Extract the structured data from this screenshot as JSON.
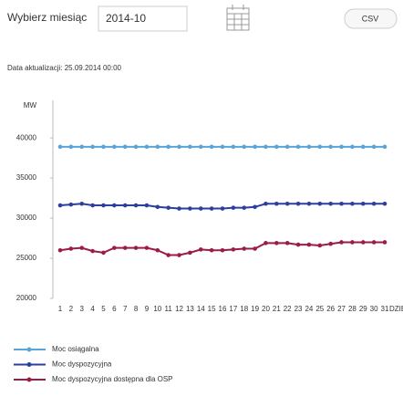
{
  "ui": {
    "month_label": "Wybierz miesiąc",
    "month_value": "2014-10",
    "csv_button": "CSV",
    "update_info": "Data aktualizacji: 25.09.2014 00:00"
  },
  "chart_data": {
    "type": "line",
    "y_label": "MW",
    "x_label": "DZIEŃ",
    "categories": [
      "1",
      "2",
      "3",
      "4",
      "5",
      "6",
      "7",
      "8",
      "9",
      "10",
      "11",
      "12",
      "13",
      "14",
      "15",
      "16",
      "17",
      "18",
      "19",
      "20",
      "21",
      "22",
      "23",
      "24",
      "25",
      "26",
      "27",
      "28",
      "29",
      "30",
      "31"
    ],
    "ylim": [
      20000,
      44000
    ],
    "yticks": [
      20000,
      25000,
      30000,
      35000,
      40000
    ],
    "series": [
      {
        "name": "Moc osiągalna",
        "color": "#5aa5d8",
        "values": [
          38900,
          38900,
          38900,
          38900,
          38900,
          38900,
          38900,
          38900,
          38900,
          38900,
          38900,
          38900,
          38900,
          38900,
          38900,
          38900,
          38900,
          38900,
          38900,
          38900,
          38900,
          38900,
          38900,
          38900,
          38900,
          38900,
          38900,
          38900,
          38900,
          38900,
          38900
        ]
      },
      {
        "name": "Moc dyspozycyjna",
        "color": "#2b3f9e",
        "values": [
          31600,
          31700,
          31800,
          31600,
          31600,
          31600,
          31600,
          31600,
          31600,
          31400,
          31300,
          31200,
          31200,
          31200,
          31200,
          31200,
          31300,
          31300,
          31400,
          31800,
          31800,
          31800,
          31800,
          31800,
          31800,
          31800,
          31800,
          31800,
          31800,
          31800,
          31800
        ]
      },
      {
        "name": "Moc dyspozycyjna dostępna dla OSP",
        "color": "#9b1b4b",
        "values": [
          26000,
          26200,
          26300,
          25900,
          25700,
          26300,
          26300,
          26300,
          26300,
          26000,
          25400,
          25400,
          25700,
          26100,
          26000,
          26000,
          26100,
          26200,
          26200,
          26900,
          26900,
          26900,
          26700,
          26700,
          26600,
          26800,
          27000,
          27000,
          27000,
          27000,
          27000
        ]
      }
    ]
  }
}
